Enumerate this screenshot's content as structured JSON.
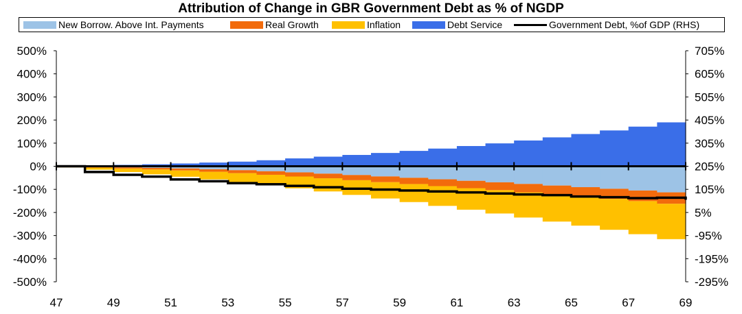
{
  "chart_data": {
    "type": "area",
    "title": "Attribution of Change in GBR Government Debt as % of NGDP",
    "x": [
      47,
      48,
      49,
      50,
      51,
      52,
      53,
      54,
      55,
      56,
      57,
      58,
      59,
      60,
      61,
      62,
      63,
      64,
      65,
      66,
      67,
      68,
      69
    ],
    "x_tick_labels": [
      "47",
      "49",
      "51",
      "53",
      "55",
      "57",
      "59",
      "61",
      "63",
      "65",
      "67",
      "69"
    ],
    "y_left": {
      "ticks": [
        "500%",
        "400%",
        "300%",
        "200%",
        "100%",
        "0%",
        "-100%",
        "-200%",
        "-300%",
        "-400%",
        "-500%"
      ],
      "range": [
        -500,
        500
      ]
    },
    "y_right": {
      "ticks": [
        "705%",
        "605%",
        "505%",
        "405%",
        "305%",
        "205%",
        "105%",
        "5%",
        "-95%",
        "-195%",
        "-295%"
      ],
      "range": [
        -295,
        705
      ]
    },
    "series": [
      {
        "name": "New Borrow. Above Int. Payments",
        "color": "#9DC3E6",
        "values": [
          0,
          -2,
          -4,
          -6,
          -8,
          -11,
          -15,
          -19,
          -24,
          -29,
          -35,
          -41,
          -47,
          -53,
          -60,
          -66,
          -73,
          -80,
          -87,
          -94,
          -101,
          -109,
          -117
        ]
      },
      {
        "name": "Real Growth",
        "color": "#F26B0C",
        "values": [
          0,
          -2,
          -4,
          -6,
          -8,
          -10,
          -12,
          -14,
          -17,
          -19,
          -21,
          -24,
          -26,
          -28,
          -31,
          -33,
          -35,
          -38,
          -40,
          -43,
          -45,
          -47,
          -52
        ]
      },
      {
        "name": "Inflation",
        "color": "#FFC000",
        "values": [
          0,
          -6,
          -12,
          -18,
          -24,
          -30,
          -36,
          -42,
          -48,
          -54,
          -60,
          -67,
          -74,
          -82,
          -89,
          -97,
          -105,
          -113,
          -121,
          -129,
          -138,
          -148,
          -158
        ]
      },
      {
        "name": "Debt Service",
        "color": "#3A6EE8",
        "values": [
          0,
          2,
          5,
          7,
          10,
          14,
          18,
          22,
          30,
          38,
          45,
          53,
          62,
          71,
          82,
          93,
          105,
          118,
          132,
          147,
          163,
          180,
          200
        ]
      },
      {
        "name": "Government Debt, %of GDP (RHS)",
        "color": "#000000",
        "values": [
          205,
          180,
          168,
          160,
          148,
          140,
          132,
          127,
          120,
          114,
          108,
          104,
          100,
          96,
          92,
          87,
          83,
          80,
          74,
          71,
          67,
          69,
          60
        ]
      }
    ],
    "legend_position": "top"
  }
}
